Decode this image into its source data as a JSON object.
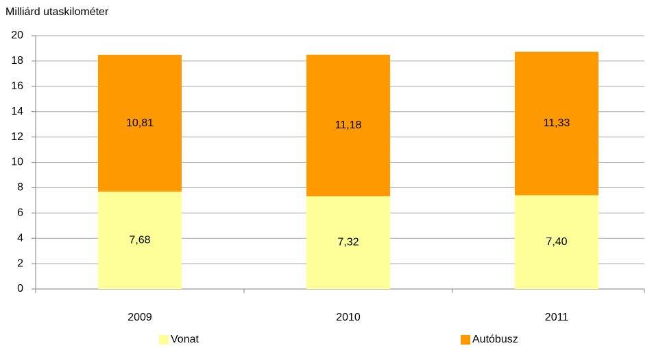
{
  "chart_data": {
    "type": "stacked_bar",
    "y_label": "Milliárd utaskilométer",
    "categories": [
      "2009",
      "2010",
      "2011"
    ],
    "series": [
      {
        "name": "Vonat",
        "color": "#ffff99",
        "values": [
          7.68,
          7.32,
          7.4
        ],
        "value_labels": [
          "7,68",
          "7,32",
          "7,40"
        ]
      },
      {
        "name": "Autóbusz",
        "color": "#ff9900",
        "values": [
          10.81,
          11.18,
          11.33
        ],
        "value_labels": [
          "10,81",
          "11,18",
          "11,33"
        ]
      }
    ],
    "ylim": [
      0,
      20
    ],
    "yticks": [
      0,
      2,
      4,
      6,
      8,
      10,
      12,
      14,
      16,
      18,
      20
    ],
    "grid": true,
    "legend": "bottom"
  }
}
